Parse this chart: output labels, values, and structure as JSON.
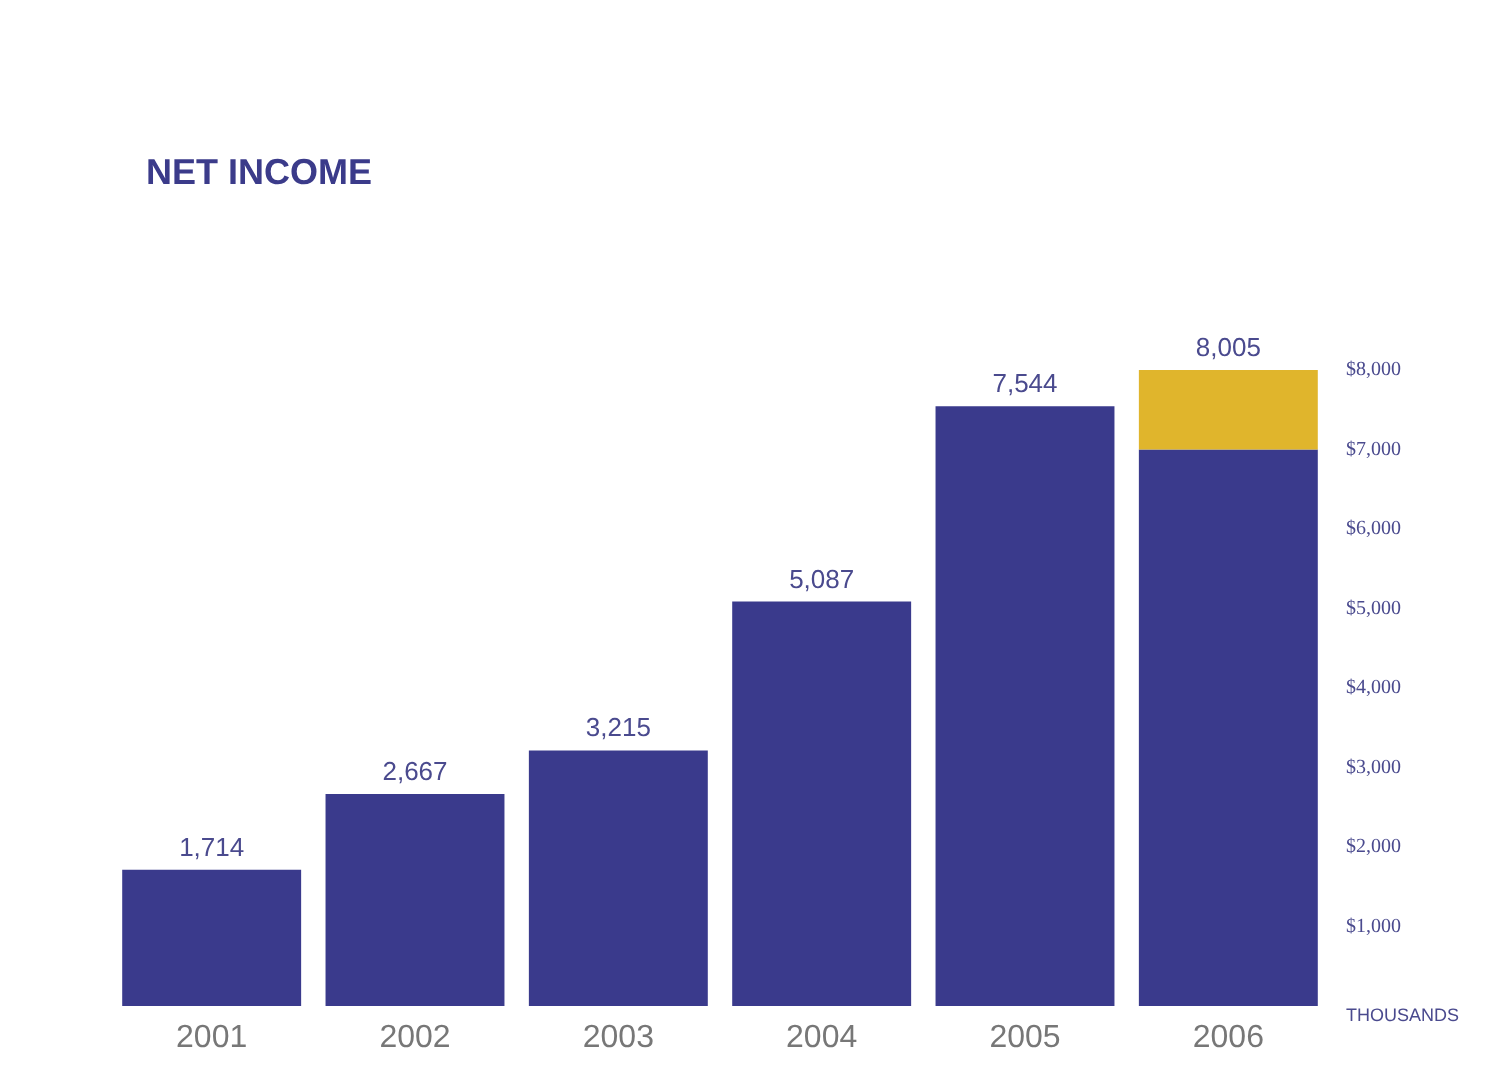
{
  "chart_data": {
    "type": "bar",
    "title": "NET INCOME",
    "ylabel": "THOUSANDS",
    "stacked": true,
    "categories": [
      "2001",
      "2002",
      "2003",
      "2004",
      "2005",
      "2006"
    ],
    "series": [
      {
        "color": "#3a3a8c",
        "values": [
          1714,
          2667,
          3215,
          5087,
          7544,
          7000
        ]
      },
      {
        "color": "#e0b52c",
        "values": [
          null,
          null,
          null,
          null,
          null,
          1005
        ]
      }
    ],
    "totals": [
      "1,714",
      "2,667",
      "3,215",
      "5,087",
      "7,544",
      "8,005"
    ],
    "ylim": [
      0,
      8000
    ],
    "yticks": [
      {
        "value": 1000,
        "label": "$1,000"
      },
      {
        "value": 2000,
        "label": "$2,000"
      },
      {
        "value": 3000,
        "label": "$3,000"
      },
      {
        "value": 4000,
        "label": "$4,000"
      },
      {
        "value": 5000,
        "label": "$5,000"
      },
      {
        "value": 6000,
        "label": "$6,000"
      },
      {
        "value": 7000,
        "label": "$7,000"
      },
      {
        "value": 8000,
        "label": "$8,000"
      }
    ],
    "grid": false
  }
}
